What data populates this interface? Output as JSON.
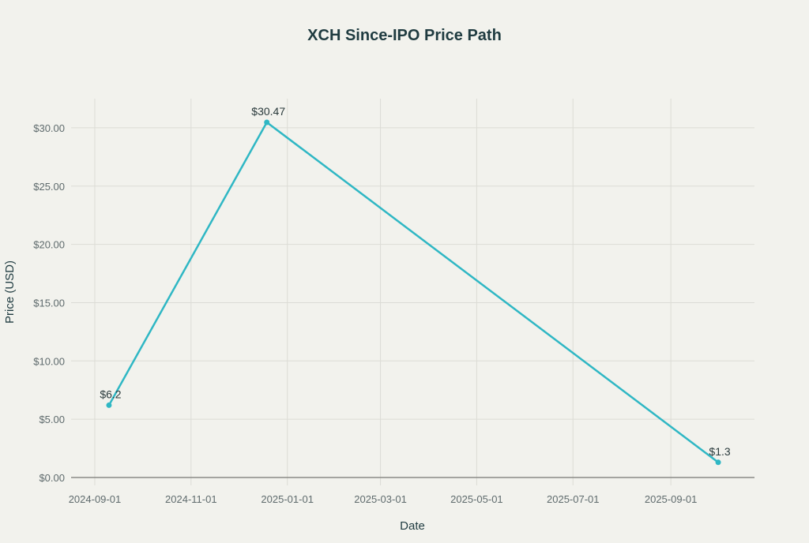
{
  "chart_data": {
    "type": "line",
    "title": "XCH Since-IPO Price Path",
    "xlabel": "Date",
    "ylabel": "Price (USD)",
    "x": [
      "2024-09-10",
      "2024-12-19",
      "2025-10-01"
    ],
    "values": [
      6.2,
      30.47,
      1.3
    ],
    "data_labels": [
      "$6.2",
      "$30.47",
      "$1.3"
    ],
    "xlim": [
      "2024-08-17",
      "2025-10-24"
    ],
    "ylim": [
      0,
      32.5
    ],
    "x_ticks": [
      "2024-09-01",
      "2024-11-01",
      "2025-01-01",
      "2025-03-01",
      "2025-05-01",
      "2025-07-01",
      "2025-09-01"
    ],
    "y_ticks": [
      0,
      5,
      10,
      15,
      20,
      25,
      30
    ],
    "y_tick_labels": [
      "$0.00",
      "$5.00",
      "$10.00",
      "$15.00",
      "$20.00",
      "$25.00",
      "$30.00"
    ],
    "grid": true,
    "colors": {
      "line": "#2fb7c4",
      "background": "#f2f2ed",
      "grid": "#dcdcd6",
      "text": "#1f3b40"
    }
  }
}
